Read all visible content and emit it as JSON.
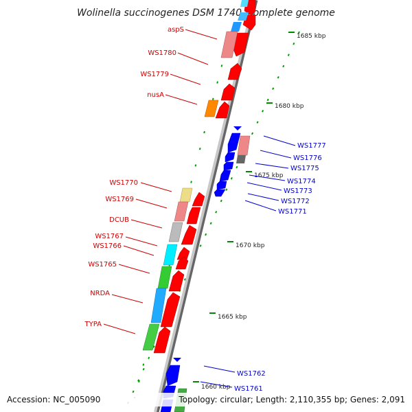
{
  "title": "Wolinella succinogenes DSM 1740, complete genome",
  "footer": {
    "accession": "Accession: NC_005090",
    "topology": "Topology: circular; Length: 2,110,355 bp; Genes: 2,091"
  },
  "scale_labels": [
    "1685 kbp",
    "1680 kbp",
    "1675 kbp",
    "1670 kbp",
    "1665 kbp",
    "1660 kbp"
  ],
  "left_genes": [
    "aspS",
    "WS1780",
    "WS1779",
    "nusA",
    "WS1770",
    "WS1769",
    "DCUB",
    "WS1767",
    "WS1766",
    "WS1765",
    "NRDA",
    "TYPA"
  ],
  "right_genes": [
    "WS1777",
    "WS1776",
    "WS1775",
    "WS1774",
    "WS1773",
    "WS1772",
    "WS1771",
    "WS1762",
    "WS1761"
  ],
  "colors": {
    "forward_strand": "#ff0000",
    "reverse_strand": "#0000ff",
    "left_label": "#cc0000",
    "right_label": "#0000cc",
    "backbone": "#888888",
    "tick": "#008800"
  }
}
